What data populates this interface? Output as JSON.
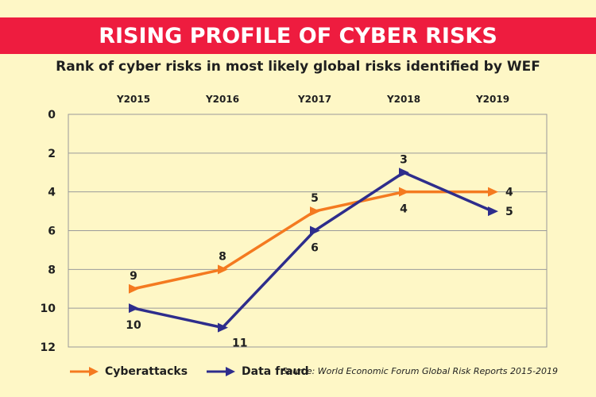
{
  "header": {
    "title": "RISING PROFILE OF CYBER RISKS"
  },
  "colors": {
    "banner": "#ee1c3f",
    "background": "#fef7c6",
    "cyberattacks": "#f47a20",
    "data_fraud": "#2e2d8c"
  },
  "chart_data": {
    "type": "line",
    "title": "Rank of cyber risks in most likely global risks identified by WEF",
    "categories": [
      "Y2015",
      "Y2016",
      "Y2017",
      "Y2018",
      "Y2019"
    ],
    "ylim": [
      0,
      12
    ],
    "y_inverted": true,
    "yticks": [
      "0",
      "2",
      "4",
      "6",
      "8",
      "10",
      "12"
    ],
    "grid": true,
    "legend_position": "bottom-left",
    "series": [
      {
        "name": "Cyberattacks",
        "values": [
          9,
          8,
          5,
          4,
          4
        ],
        "labels": [
          "9",
          "8",
          "5",
          "4",
          "4"
        ]
      },
      {
        "name": "Data fraud",
        "values": [
          10,
          11,
          6,
          3,
          5
        ],
        "labels": [
          "10",
          "11",
          "6",
          "3",
          "5"
        ]
      }
    ]
  },
  "source": "Source: World Economic Forum Global Risk Reports 2015-2019"
}
